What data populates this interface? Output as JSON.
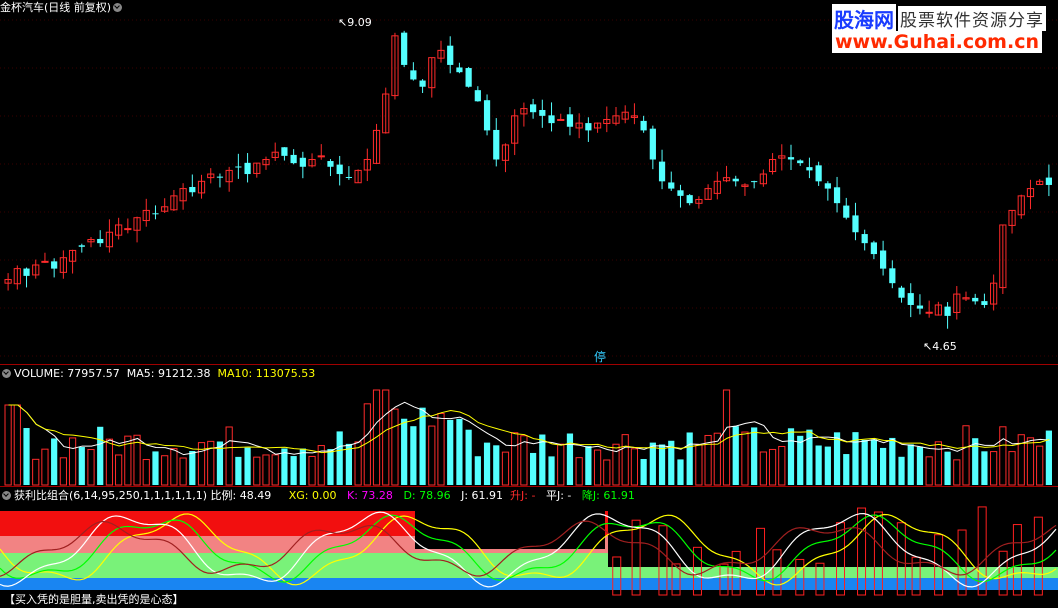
{
  "price_header": {
    "stock_name": "金杯汽车",
    "period": "(日线 前复权)"
  },
  "price_markers": {
    "high": "9.09",
    "low": "4.65",
    "stop": "停"
  },
  "volume_header": {
    "title": "VOLUME:",
    "value": "77957.57",
    "ma5_label": "MA5:",
    "ma5_value": "91212.38",
    "ma10_label": "MA10:",
    "ma10_value": "113075.53"
  },
  "indicator_header": {
    "title": "获利比组合(6,14,95,250,1,1,1,1,1,1)",
    "ratio_label": "比例:",
    "ratio_value": "48.49",
    "xg": "XG: 0.00",
    "k": "K: 73.28",
    "d": "D: 78.96",
    "j": "J: 61.91",
    "up_j": "升J: -",
    "flat_j": "平J: -",
    "down_j": "降J: 61.91"
  },
  "footer": "【买入凭的是胆量,卖出凭的是心态】",
  "logo": {
    "line1": "股海网",
    "line2": "股票软件资源分享",
    "line3": "www.Guhai.com.cn"
  },
  "colors": {
    "up": "#ff2b2b",
    "down": "#54ffff",
    "ma5": "#ffffff",
    "ma10": "#ffff00",
    "green": "#00ff00",
    "magenta": "#ff00ff"
  },
  "chart_data": {
    "type": "candlestick",
    "price_range": [
      4.65,
      9.09
    ],
    "closes": [
      5.55,
      5.7,
      5.6,
      5.75,
      5.8,
      5.7,
      5.85,
      5.95,
      6.0,
      6.1,
      6.05,
      6.2,
      6.3,
      6.25,
      6.4,
      6.5,
      6.45,
      6.55,
      6.7,
      6.8,
      6.75,
      6.9,
      7.0,
      6.95,
      7.05,
      7.1,
      7.0,
      7.15,
      7.2,
      7.3,
      7.25,
      7.15,
      7.1,
      7.2,
      7.25,
      7.1,
      7.0,
      6.95,
      7.05,
      7.2,
      7.6,
      8.1,
      8.9,
      8.5,
      8.3,
      8.2,
      8.6,
      8.7,
      8.5,
      8.4,
      8.2,
      8.0,
      7.6,
      7.2,
      7.4,
      7.8,
      7.9,
      7.85,
      7.8,
      7.7,
      7.75,
      7.65,
      7.7,
      7.6,
      7.7,
      7.75,
      7.8,
      7.85,
      7.8,
      7.6,
      7.2,
      6.9,
      6.8,
      6.7,
      6.6,
      6.65,
      6.8,
      6.9,
      6.95,
      6.9,
      6.85,
      6.9,
      7.0,
      7.2,
      7.25,
      7.2,
      7.15,
      7.05,
      6.9,
      6.8,
      6.6,
      6.4,
      6.2,
      6.05,
      5.9,
      5.7,
      5.5,
      5.3,
      5.2,
      5.15,
      5.1,
      5.2,
      5.05,
      5.35,
      5.3,
      5.25,
      5.2,
      5.5,
      6.3,
      6.5,
      6.7,
      6.8,
      6.9,
      6.85
    ]
  }
}
